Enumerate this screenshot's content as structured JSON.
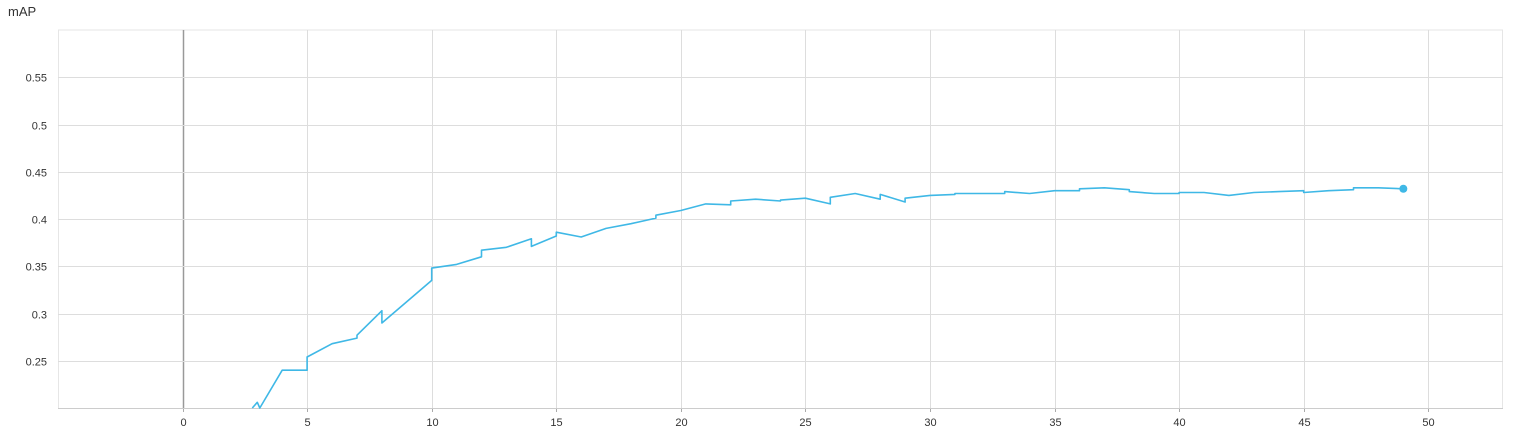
{
  "chart_data": {
    "type": "line",
    "title": "mAP",
    "xlabel": "",
    "ylabel": "",
    "xlim": [
      -5,
      53
    ],
    "ylim": [
      0.2,
      0.6
    ],
    "grid": true,
    "x_ticks": [
      0,
      5,
      10,
      15,
      20,
      25,
      30,
      35,
      40,
      45,
      50
    ],
    "x_tick_labels": [
      "0",
      "5",
      "10",
      "15",
      "20",
      "25",
      "30",
      "35",
      "40",
      "45",
      "50"
    ],
    "y_ticks": [
      0.25,
      0.3,
      0.35,
      0.4,
      0.45,
      0.5,
      0.55
    ],
    "y_tick_labels": [
      "0.25",
      "0.3",
      "0.35",
      "0.4",
      "0.45",
      "0.5",
      "0.55"
    ],
    "series": [
      {
        "color": "#3fb8e6",
        "points": [
          [
            2.8,
            0.2
          ],
          [
            3.0,
            0.206
          ],
          [
            3.1,
            0.2
          ],
          [
            4.0,
            0.24
          ],
          [
            5.0,
            0.24
          ],
          [
            5.0,
            0.254
          ],
          [
            6.0,
            0.268
          ],
          [
            7.0,
            0.274
          ],
          [
            7.0,
            0.277
          ],
          [
            8.0,
            0.303
          ],
          [
            8.0,
            0.29
          ],
          [
            10.0,
            0.335
          ],
          [
            10.0,
            0.348
          ],
          [
            11.0,
            0.352
          ],
          [
            12.0,
            0.36
          ],
          [
            12.0,
            0.367
          ],
          [
            13.0,
            0.37
          ],
          [
            14.0,
            0.379
          ],
          [
            14.0,
            0.371
          ],
          [
            15.0,
            0.382
          ],
          [
            15.0,
            0.386
          ],
          [
            16.0,
            0.381
          ],
          [
            17.0,
            0.39
          ],
          [
            18.0,
            0.395
          ],
          [
            19.0,
            0.401
          ],
          [
            19.0,
            0.404
          ],
          [
            20.0,
            0.409
          ],
          [
            21.0,
            0.416
          ],
          [
            22.0,
            0.415
          ],
          [
            22.0,
            0.419
          ],
          [
            23.0,
            0.421
          ],
          [
            24.0,
            0.419
          ],
          [
            24.0,
            0.42
          ],
          [
            25.0,
            0.422
          ],
          [
            26.0,
            0.416
          ],
          [
            26.0,
            0.423
          ],
          [
            27.0,
            0.427
          ],
          [
            28.0,
            0.421
          ],
          [
            28.0,
            0.426
          ],
          [
            29.0,
            0.418
          ],
          [
            29.0,
            0.422
          ],
          [
            30.0,
            0.425
          ],
          [
            31.0,
            0.426
          ],
          [
            31.0,
            0.427
          ],
          [
            32.0,
            0.427
          ],
          [
            33.0,
            0.427
          ],
          [
            33.0,
            0.429
          ],
          [
            34.0,
            0.427
          ],
          [
            35.0,
            0.43
          ],
          [
            36.0,
            0.43
          ],
          [
            36.0,
            0.432
          ],
          [
            37.0,
            0.433
          ],
          [
            38.0,
            0.431
          ],
          [
            38.0,
            0.429
          ],
          [
            39.0,
            0.427
          ],
          [
            40.0,
            0.427
          ],
          [
            40.0,
            0.428
          ],
          [
            41.0,
            0.428
          ],
          [
            42.0,
            0.425
          ],
          [
            43.0,
            0.428
          ],
          [
            44.0,
            0.429
          ],
          [
            45.0,
            0.43
          ],
          [
            45.0,
            0.428
          ],
          [
            46.0,
            0.43
          ],
          [
            47.0,
            0.431
          ],
          [
            47.0,
            0.433
          ],
          [
            48.0,
            0.433
          ],
          [
            49.0,
            0.432
          ]
        ],
        "last_point": [
          49.0,
          0.432
        ]
      }
    ]
  }
}
